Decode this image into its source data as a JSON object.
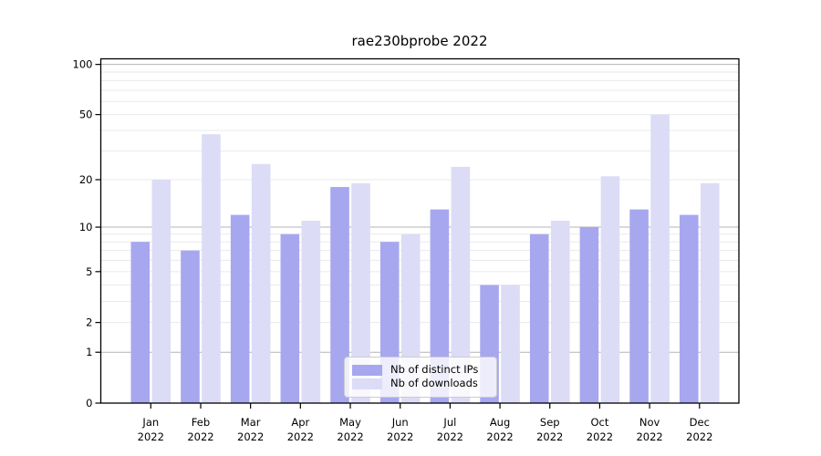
{
  "figure": {
    "background": "#ffffff"
  },
  "chart_data": {
    "type": "bar",
    "title": "rae230bprobe 2022",
    "x_tick_labels": [
      [
        "Jan",
        "2022"
      ],
      [
        "Feb",
        "2022"
      ],
      [
        "Mar",
        "2022"
      ],
      [
        "Apr",
        "2022"
      ],
      [
        "May",
        "2022"
      ],
      [
        "Jun",
        "2022"
      ],
      [
        "Jul",
        "2022"
      ],
      [
        "Aug",
        "2022"
      ],
      [
        "Sep",
        "2022"
      ],
      [
        "Oct",
        "2022"
      ],
      [
        "Nov",
        "2022"
      ],
      [
        "Dec",
        "2022"
      ]
    ],
    "series": [
      {
        "name": "Nb of distinct IPs",
        "color": "#a7a7f0",
        "values": [
          8,
          7,
          12,
          9,
          18,
          8,
          13,
          4,
          9,
          10,
          13,
          12
        ]
      },
      {
        "name": "Nb of downloads",
        "color": "#dcdcf6",
        "values": [
          20,
          38,
          25,
          11,
          19,
          9,
          24,
          4,
          11,
          21,
          50,
          19
        ]
      }
    ],
    "yscale": "log1p",
    "y_ticks": [
      100,
      50,
      20,
      10,
      5,
      2,
      1,
      0
    ],
    "ylim": [
      0,
      108
    ],
    "grid": {
      "major": [
        1,
        10,
        100
      ],
      "minor": [
        2,
        3,
        4,
        5,
        6,
        7,
        8,
        9,
        20,
        30,
        40,
        50,
        60,
        70,
        80,
        90
      ],
      "major_color": "#b4b4b4",
      "minor_color": "#eaeaea"
    },
    "legend": {
      "entries": [
        "Nb of distinct IPs",
        "Nb of downloads"
      ],
      "position": "lower center"
    }
  }
}
